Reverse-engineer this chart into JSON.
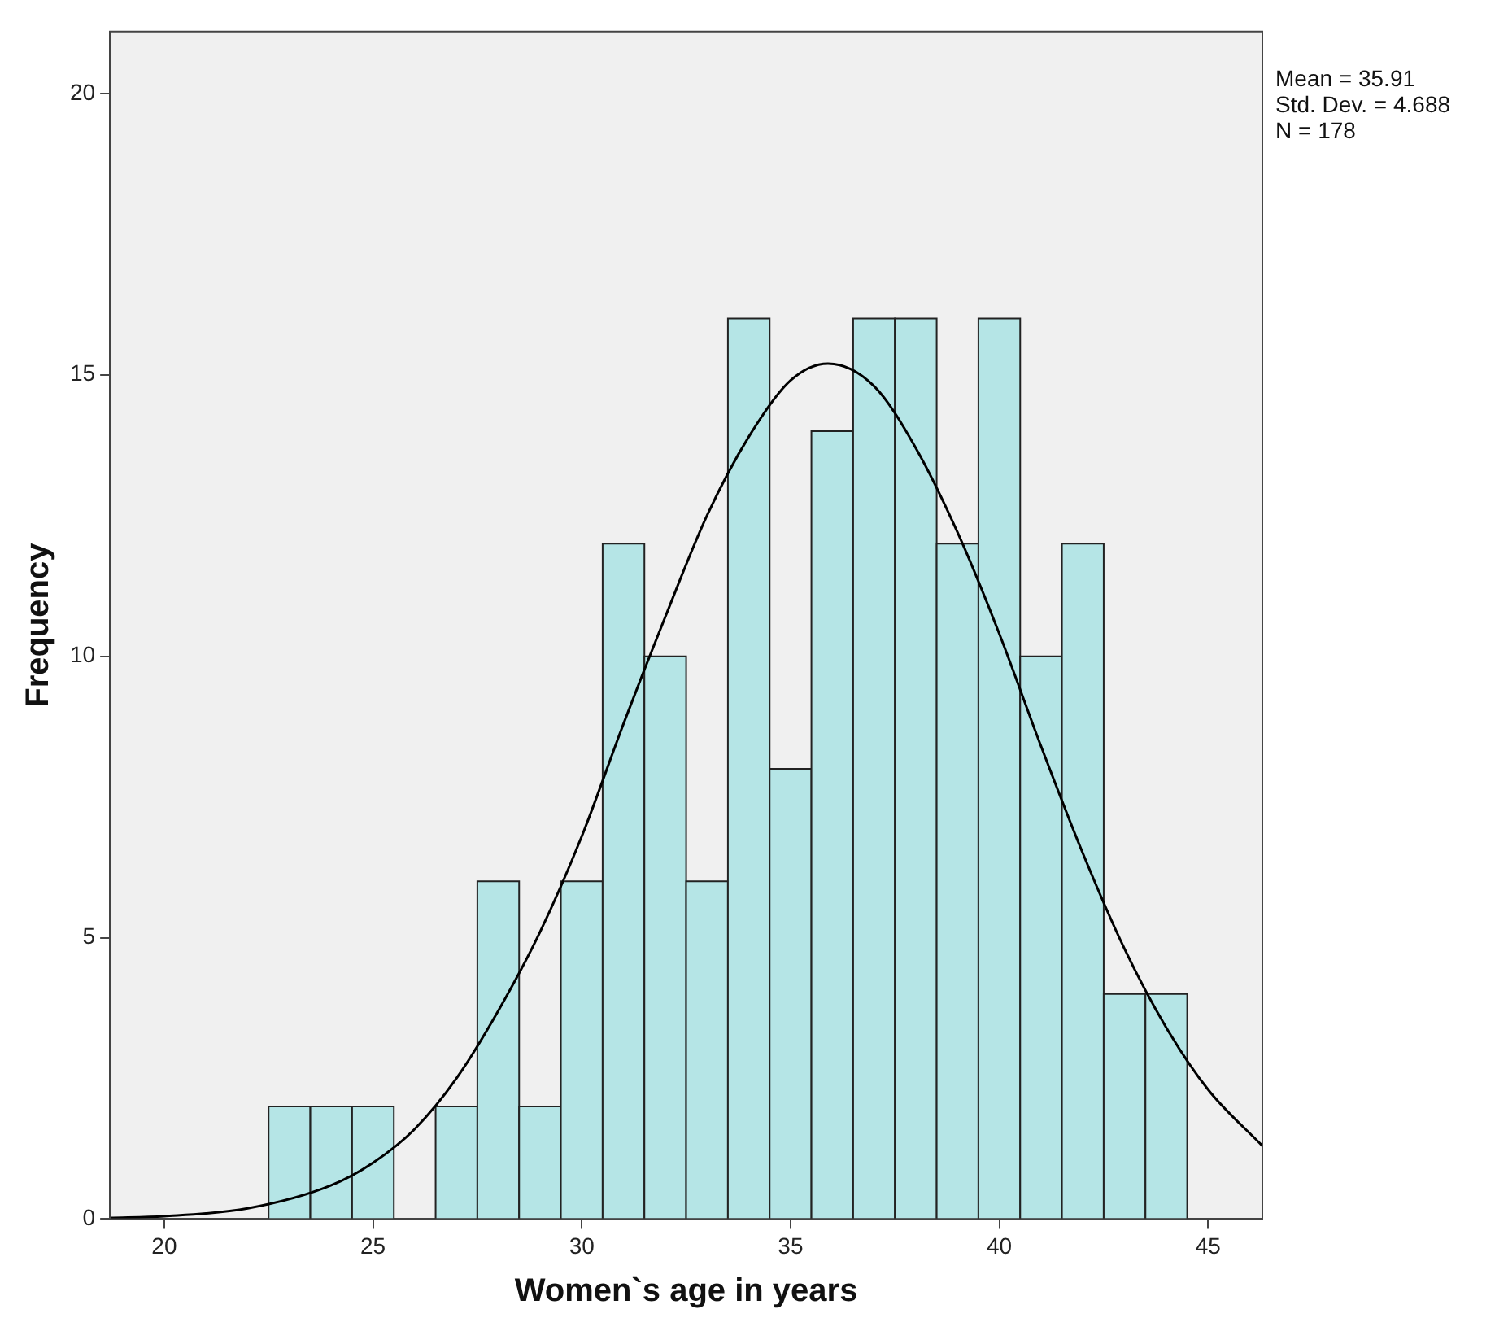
{
  "chart_data": {
    "type": "histogram",
    "xlabel": "Women`s age in years",
    "ylabel": "Frequency",
    "bins": [
      22.5,
      23.5,
      24.5,
      25.5,
      26.5,
      27.5,
      28.5,
      29.5,
      30.5,
      31.5,
      32.5,
      33.5,
      34.5,
      35.5,
      36.5,
      37.5,
      38.5,
      39.5,
      40.5,
      41.5,
      42.5,
      43.5,
      44.5
    ],
    "values": [
      2,
      2,
      2,
      0,
      2,
      6,
      2,
      6,
      12,
      10,
      6,
      16,
      8,
      14,
      16,
      16,
      12,
      16,
      10,
      12,
      4,
      4
    ],
    "color": "#b5e5e6",
    "series": [
      {
        "type": "line",
        "color": "#000000",
        "x": [
          18.7,
          20,
          22,
          24,
          25,
          26,
          27,
          28,
          29,
          30,
          31,
          32,
          33,
          34,
          35,
          35.9,
          37,
          38,
          39,
          40,
          41,
          42,
          43,
          44,
          45,
          46.3
        ],
        "values": [
          0.02,
          0.05,
          0.19,
          0.6,
          1.0,
          1.6,
          2.5,
          3.7,
          5.1,
          6.8,
          8.8,
          10.7,
          12.5,
          13.9,
          14.9,
          15.2,
          14.8,
          13.7,
          12.2,
          10.4,
          8.4,
          6.5,
          4.8,
          3.4,
          2.3,
          1.3
        ]
      }
    ],
    "xlim": [
      18.7,
      46.3
    ],
    "xticks": [
      20,
      25,
      30,
      35,
      40,
      45
    ],
    "ylim": [
      0,
      21.1
    ],
    "yticks": [
      0,
      5,
      10,
      15,
      20
    ],
    "grid": false,
    "legend": false,
    "marker": "none",
    "line_style": "solid",
    "annotations": [
      "Mean = 35.91",
      "Std. Dev. = 4.688",
      "N = 178"
    ]
  }
}
